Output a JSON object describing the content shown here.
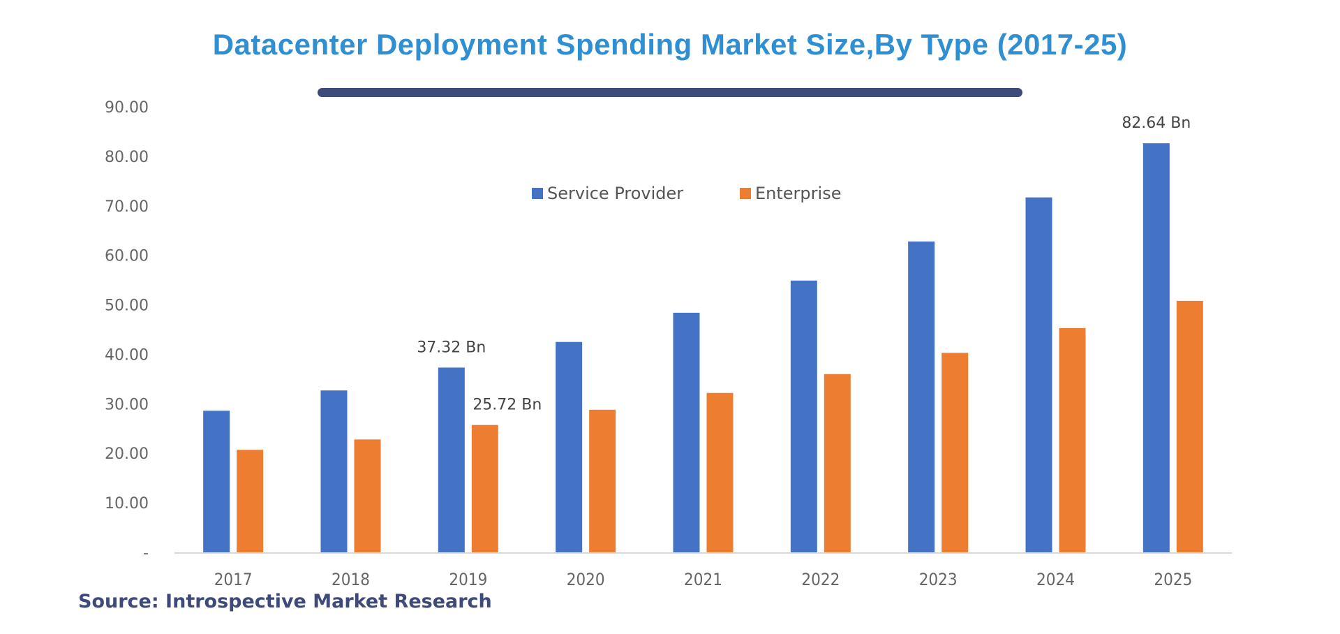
{
  "header": {
    "title": "Datacenter Deployment Spending Market Size,By Type (2017-25)"
  },
  "footer": {
    "source": "Source: Introspective Market Research"
  },
  "colors": {
    "title": "#2f8fd3",
    "accent_bar": "#3d4b7a",
    "service_provider": "#4472c4",
    "enterprise": "#ed7d31",
    "source_text": "#3e4a7a"
  },
  "chart_data": {
    "type": "bar",
    "title": "Datacenter Deployment Spending Market Size,By Type (2017-25)",
    "xlabel": "",
    "ylabel": "",
    "categories": [
      "2017",
      "2018",
      "2019",
      "2020",
      "2021",
      "2022",
      "2023",
      "2024",
      "2025"
    ],
    "series": [
      {
        "name": "Service Provider",
        "color": "#4472c4",
        "values": [
          28.6,
          32.7,
          37.32,
          42.5,
          48.4,
          54.9,
          62.8,
          71.7,
          82.64
        ]
      },
      {
        "name": "Enterprise",
        "color": "#ed7d31",
        "values": [
          20.7,
          22.8,
          25.72,
          28.8,
          32.2,
          36.0,
          40.3,
          45.3,
          50.8
        ]
      }
    ],
    "ylim": [
      0,
      90
    ],
    "yticks": [
      0,
      10,
      20,
      30,
      40,
      50,
      60,
      70,
      80,
      90
    ],
    "ytick_labels": [
      "-",
      "10.00",
      "20.00",
      "30.00",
      "40.00",
      "50.00",
      "60.00",
      "70.00",
      "80.00",
      "90.00"
    ],
    "grid": false,
    "legend": {
      "placement": "top-center",
      "entries": [
        "Service Provider",
        "Enterprise"
      ]
    },
    "annotations": [
      {
        "series": 0,
        "category": "2019",
        "text": "37.32  Bn"
      },
      {
        "series": 1,
        "category": "2019",
        "text": "25.72  Bn"
      },
      {
        "series": 0,
        "category": "2025",
        "text": "82.64  Bn"
      }
    ]
  }
}
